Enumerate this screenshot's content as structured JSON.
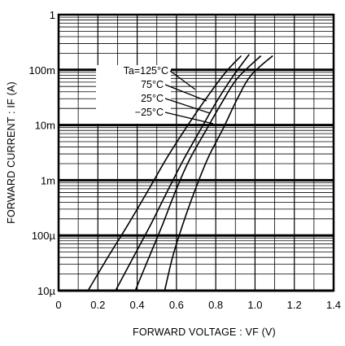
{
  "chart_data": {
    "type": "line",
    "title": "",
    "xlabel": "FORWARD  VOLTAGE : VF (V)",
    "ylabel": "FORWARD  CURRENT : IF (A)",
    "x_scale": "linear",
    "y_scale": "log",
    "xlim": [
      0,
      1.4
    ],
    "ylim": [
      1e-05,
      1
    ],
    "x_ticks": [
      0,
      0.2,
      0.4,
      0.6,
      0.8,
      1.0,
      1.2,
      1.4
    ],
    "x_tick_labels": [
      "0",
      "0.2",
      "0.4",
      "0.6",
      "0.8",
      "1.0",
      "1.2",
      "1.4"
    ],
    "y_ticks": [
      1e-05,
      0.0001,
      0.001,
      0.01,
      0.1,
      1
    ],
    "y_tick_labels": [
      "10µ",
      "100µ",
      "1m",
      "10m",
      "100m",
      "1"
    ],
    "grid": true,
    "legend_position": "top-left inside plot, with leader lines to curves",
    "series": [
      {
        "name": "Ta=125°C",
        "x": [
          0.15,
          0.25,
          0.35,
          0.45,
          0.55,
          0.65,
          0.75,
          0.85,
          0.93
        ],
        "y": [
          1e-05,
          4e-05,
          0.00015,
          0.0006,
          0.0025,
          0.009,
          0.03,
          0.09,
          0.18
        ]
      },
      {
        "name": "75°C",
        "x": [
          0.29,
          0.38,
          0.47,
          0.56,
          0.64,
          0.72,
          0.8,
          0.88,
          0.97
        ],
        "y": [
          1e-05,
          4e-05,
          0.00016,
          0.0007,
          0.0025,
          0.008,
          0.025,
          0.07,
          0.19
        ]
      },
      {
        "name": "25°C",
        "x": [
          0.39,
          0.46,
          0.53,
          0.6,
          0.67,
          0.75,
          0.83,
          0.91,
          1.03
        ],
        "y": [
          1e-05,
          4e-05,
          0.00016,
          0.0007,
          0.0025,
          0.008,
          0.025,
          0.07,
          0.18
        ]
      },
      {
        "name": "−25°C",
        "x": [
          0.54,
          0.58,
          0.63,
          0.69,
          0.76,
          0.84,
          0.91,
          0.98,
          1.09
        ],
        "y": [
          1e-05,
          4e-05,
          0.00015,
          0.0006,
          0.0025,
          0.009,
          0.03,
          0.08,
          0.18
        ]
      }
    ]
  }
}
